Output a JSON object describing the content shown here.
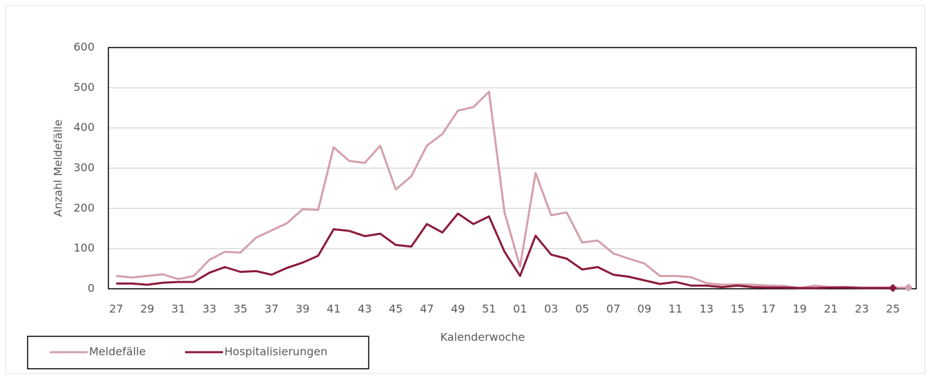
{
  "chart_data": {
    "type": "line",
    "x_label": "Kalenderwoche",
    "y_label": "Anzahl Meldefälle",
    "categories": [
      "27",
      null,
      "29",
      null,
      "31",
      null,
      "33",
      null,
      "35",
      null,
      "37",
      null,
      "39",
      null,
      "41",
      null,
      "43",
      null,
      "45",
      null,
      "47",
      null,
      "49",
      null,
      "51",
      null,
      "01",
      null,
      "03",
      null,
      "05",
      null,
      "07",
      null,
      "09",
      null,
      "11",
      null,
      "13",
      null,
      "15",
      null,
      "17",
      null,
      "19",
      null,
      "21",
      null,
      "23",
      null,
      "25",
      null
    ],
    "series": [
      {
        "name": "Meldefälle",
        "color": "#d4a0ac",
        "marker": "diamond",
        "values": [
          32,
          28,
          32,
          36,
          24,
          32,
          72,
          92,
          90,
          127,
          145,
          163,
          198,
          196,
          352,
          318,
          313,
          356,
          247,
          280,
          356,
          385,
          443,
          452,
          490,
          190,
          55,
          288,
          183,
          190,
          115,
          120,
          88,
          75,
          63,
          32,
          32,
          29,
          14,
          10,
          11,
          10,
          8,
          7,
          2,
          8,
          4,
          5,
          3,
          3,
          3,
          3
        ]
      },
      {
        "name": "Hospitalisierungen",
        "color": "#8b1a3a",
        "marker": "diamond",
        "values": [
          13,
          13,
          10,
          15,
          17,
          17,
          40,
          54,
          42,
          44,
          35,
          52,
          65,
          82,
          148,
          144,
          131,
          137,
          109,
          105,
          161,
          140,
          187,
          161,
          180,
          92,
          32,
          132,
          85,
          75,
          48,
          54,
          35,
          30,
          21,
          12,
          17,
          8,
          8,
          4,
          8,
          4,
          3,
          3,
          2,
          2,
          3,
          3,
          2,
          2,
          2,
          null
        ]
      }
    ],
    "ylim": [
      0,
      600
    ],
    "yticks": [
      0,
      100,
      200,
      300,
      400,
      500,
      600
    ],
    "grid": true
  }
}
